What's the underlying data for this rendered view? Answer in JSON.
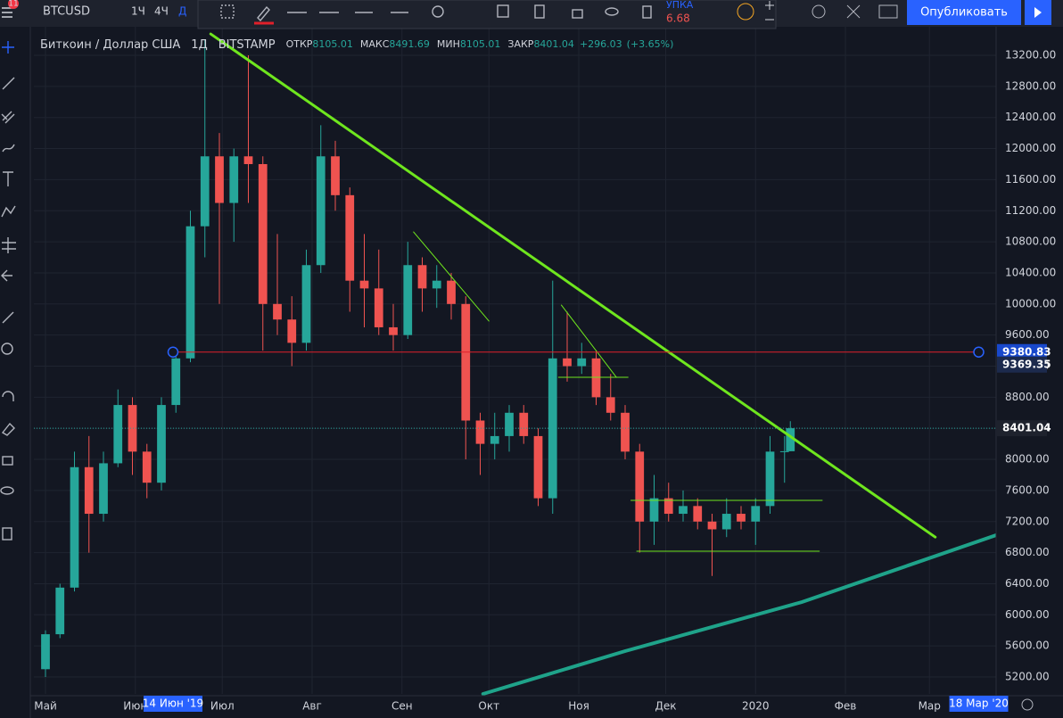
{
  "ui": {
    "symbol": "BTCUSD",
    "intervals": [
      "1Ч",
      "4Ч",
      "Д"
    ],
    "buy_label": "УПКА",
    "buy_price": "6.68",
    "publish": "Опубликовать",
    "badge": "11"
  },
  "chart_data": {
    "type": "candlestick",
    "title": "Биткоин / Доллар США",
    "interval": "1Д",
    "exchange": "BITSTAMP",
    "legend": [
      {
        "name": "ОТКР",
        "value": 8105.01
      },
      {
        "name": "МАКС",
        "value": 8491.69
      },
      {
        "name": "МИН",
        "value": 8105.01
      },
      {
        "name": "ЗАКР",
        "value": 8401.04
      }
    ],
    "change": {
      "value": 296.03,
      "label": "+296.03"
    },
    "change_pct": {
      "value": 3.65,
      "label": "(+3.65%)"
    },
    "up_color": "#26a69a",
    "down_color": "#ef5350",
    "x": [
      "2019-05-01",
      "2019-05-06",
      "2019-05-11",
      "2019-05-16",
      "2019-05-21",
      "2019-05-26",
      "2019-05-31",
      "2019-06-05",
      "2019-06-10",
      "2019-06-15",
      "2019-06-20",
      "2019-06-25",
      "2019-06-30",
      "2019-07-05",
      "2019-07-10",
      "2019-07-15",
      "2019-07-20",
      "2019-07-25",
      "2019-07-30",
      "2019-08-04",
      "2019-08-09",
      "2019-08-14",
      "2019-08-19",
      "2019-08-24",
      "2019-08-29",
      "2019-09-03",
      "2019-09-08",
      "2019-09-13",
      "2019-09-18",
      "2019-09-23",
      "2019-09-28",
      "2019-10-03",
      "2019-10-08",
      "2019-10-13",
      "2019-10-18",
      "2019-10-23",
      "2019-10-28",
      "2019-11-02",
      "2019-11-07",
      "2019-11-12",
      "2019-11-17",
      "2019-11-22",
      "2019-11-27",
      "2019-12-02",
      "2019-12-07",
      "2019-12-12",
      "2019-12-17",
      "2019-12-22",
      "2019-12-27",
      "2020-01-01",
      "2020-01-06",
      "2020-01-11",
      "2020-01-13"
    ],
    "open": [
      5300,
      5750,
      6350,
      7900,
      7300,
      7950,
      8700,
      8100,
      7700,
      8700,
      9300,
      11000,
      11900,
      11300,
      11900,
      11800,
      10000,
      9800,
      9500,
      10500,
      11900,
      11400,
      10300,
      10200,
      9700,
      9600,
      10500,
      10200,
      10300,
      10000,
      8500,
      8200,
      8300,
      8600,
      8300,
      7500,
      9300,
      9200,
      9300,
      8800,
      8600,
      8100,
      7200,
      7500,
      7300,
      7400,
      7200,
      7100,
      7300,
      7200,
      7400,
      8100,
      8105.01
    ],
    "high": [
      5800,
      6400,
      8100,
      8300,
      8100,
      8900,
      8800,
      8200,
      8800,
      9400,
      11200,
      13400,
      12200,
      12000,
      13200,
      11900,
      10900,
      10100,
      10700,
      12300,
      12100,
      11500,
      10900,
      10700,
      10000,
      10800,
      10600,
      10500,
      10400,
      10100,
      8600,
      8600,
      8700,
      8700,
      8400,
      10300,
      9900,
      9500,
      9400,
      9100,
      8700,
      8200,
      7800,
      7700,
      7600,
      7500,
      7300,
      7500,
      7400,
      7500,
      8300,
      8300,
      8491.69
    ],
    "low": [
      5200,
      5700,
      6300,
      6800,
      7200,
      7900,
      7800,
      7500,
      7600,
      8600,
      9250,
      10600,
      10000,
      10800,
      11300,
      9400,
      9600,
      9200,
      9400,
      10400,
      11200,
      9900,
      9700,
      9600,
      9400,
      9550,
      9900,
      9950,
      9800,
      8000,
      7800,
      8000,
      8100,
      8200,
      7400,
      7300,
      9000,
      9100,
      8700,
      8500,
      8000,
      6800,
      6900,
      7200,
      7200,
      7100,
      6500,
      7000,
      7100,
      6900,
      7300,
      7700,
      8105.01
    ],
    "close": [
      5750,
      6350,
      7900,
      7300,
      7950,
      8700,
      8100,
      7700,
      8700,
      9300,
      11000,
      11900,
      11300,
      11900,
      11800,
      10000,
      9800,
      9500,
      10500,
      11900,
      11400,
      10300,
      10200,
      9700,
      9600,
      10500,
      10200,
      10300,
      10000,
      8500,
      8200,
      8300,
      8600,
      8300,
      7500,
      9300,
      9200,
      9300,
      8800,
      8600,
      8100,
      7200,
      7500,
      7300,
      7400,
      7200,
      7100,
      7300,
      7200,
      7400,
      8100,
      8105.01,
      8401.04
    ],
    "xlim": [
      "2019-04-27",
      "2020-03-24"
    ],
    "xticks": [
      {
        "value": "2019-05-01",
        "label": "Май"
      },
      {
        "value": "2019-06-01",
        "label": "Июн"
      },
      {
        "value": "2019-07-01",
        "label": "Июл"
      },
      {
        "value": "2019-08-01",
        "label": "Авг"
      },
      {
        "value": "2019-09-01",
        "label": "Сен"
      },
      {
        "value": "2019-10-01",
        "label": "Окт"
      },
      {
        "value": "2019-11-01",
        "label": "Ноя"
      },
      {
        "value": "2019-12-01",
        "label": "Дек"
      },
      {
        "value": "2020-01-01",
        "label": "2020"
      },
      {
        "value": "2020-02-01",
        "label": "Фев"
      },
      {
        "value": "2020-03-01",
        "label": "Мар"
      }
    ],
    "ylim": [
      4982,
      13510
    ],
    "yticks": [
      {
        "value": 5200,
        "label": "5200.00"
      },
      {
        "value": 5600,
        "label": "5600.00"
      },
      {
        "value": 6000,
        "label": "6000.00"
      },
      {
        "value": 6400,
        "label": "6400.00"
      },
      {
        "value": 6800,
        "label": "6800.00"
      },
      {
        "value": 7200,
        "label": "7200.00"
      },
      {
        "value": 7600,
        "label": "7600.00"
      },
      {
        "value": 8000,
        "label": "8000.00"
      },
      {
        "value": 8400,
        "label": "8400.00"
      },
      {
        "value": 8800,
        "label": "8800.00"
      },
      {
        "value": 9200,
        "label": "9200.00"
      },
      {
        "value": 9600,
        "label": "9600.00"
      },
      {
        "value": 10000,
        "label": "10000.00"
      },
      {
        "value": 10400,
        "label": "10400.00"
      },
      {
        "value": 10800,
        "label": "10800.00"
      },
      {
        "value": 11200,
        "label": "11200.00"
      },
      {
        "value": 11600,
        "label": "11600.00"
      },
      {
        "value": 12000,
        "label": "12000.00"
      },
      {
        "value": 12400,
        "label": "12400.00"
      },
      {
        "value": 12800,
        "label": "12800.00"
      },
      {
        "value": 13200,
        "label": "13200.00"
      }
    ],
    "grid": true,
    "drawings": [
      {
        "x": [
          "2019-06-27",
          "2020-03-03"
        ],
        "y": [
          13475,
          7000
        ],
        "color": "#6fe61e",
        "width": 3
      },
      {
        "x": [
          "2019-09-29",
          "2019-11-17",
          "2020-01-17",
          "2020-03-24"
        ],
        "y": [
          4982,
          5533,
          6164,
          7025
        ],
        "color": "#1fa38a",
        "width": 4
      },
      {
        "x": [
          "2019-09-05",
          "2019-10-01"
        ],
        "y": [
          10927,
          9780
        ],
        "color": "#6fe61e",
        "width": 1
      },
      {
        "x": [
          "2019-10-26",
          "2019-11-14"
        ],
        "y": [
          9986,
          9056
        ],
        "color": "#6fe61e",
        "width": 1
      },
      {
        "x": [
          "2019-10-25",
          "2019-11-18"
        ],
        "y": [
          9056,
          9056
        ],
        "color": "#6fe61e",
        "width": 1
      },
      {
        "x": [
          "2019-11-19",
          "2020-01-24"
        ],
        "y": [
          7472,
          7472
        ],
        "color": "#6fe61e",
        "width": 1
      },
      {
        "x": [
          "2019-11-21",
          "2020-01-23"
        ],
        "y": [
          6818,
          6818
        ],
        "color": "#6fe61e",
        "width": 1
      }
    ],
    "hline": {
      "x": [
        "2019-06-14",
        "2020-03-18"
      ],
      "price": 9380.83,
      "color": "#e0202a"
    },
    "crosshair_price": 9369.35,
    "crosshair_x_labels": [
      {
        "value": "2019-06-14",
        "label": "14 Июн '19"
      },
      {
        "value": "2020-03-18",
        "label": "18 Мар '20"
      }
    ]
  }
}
